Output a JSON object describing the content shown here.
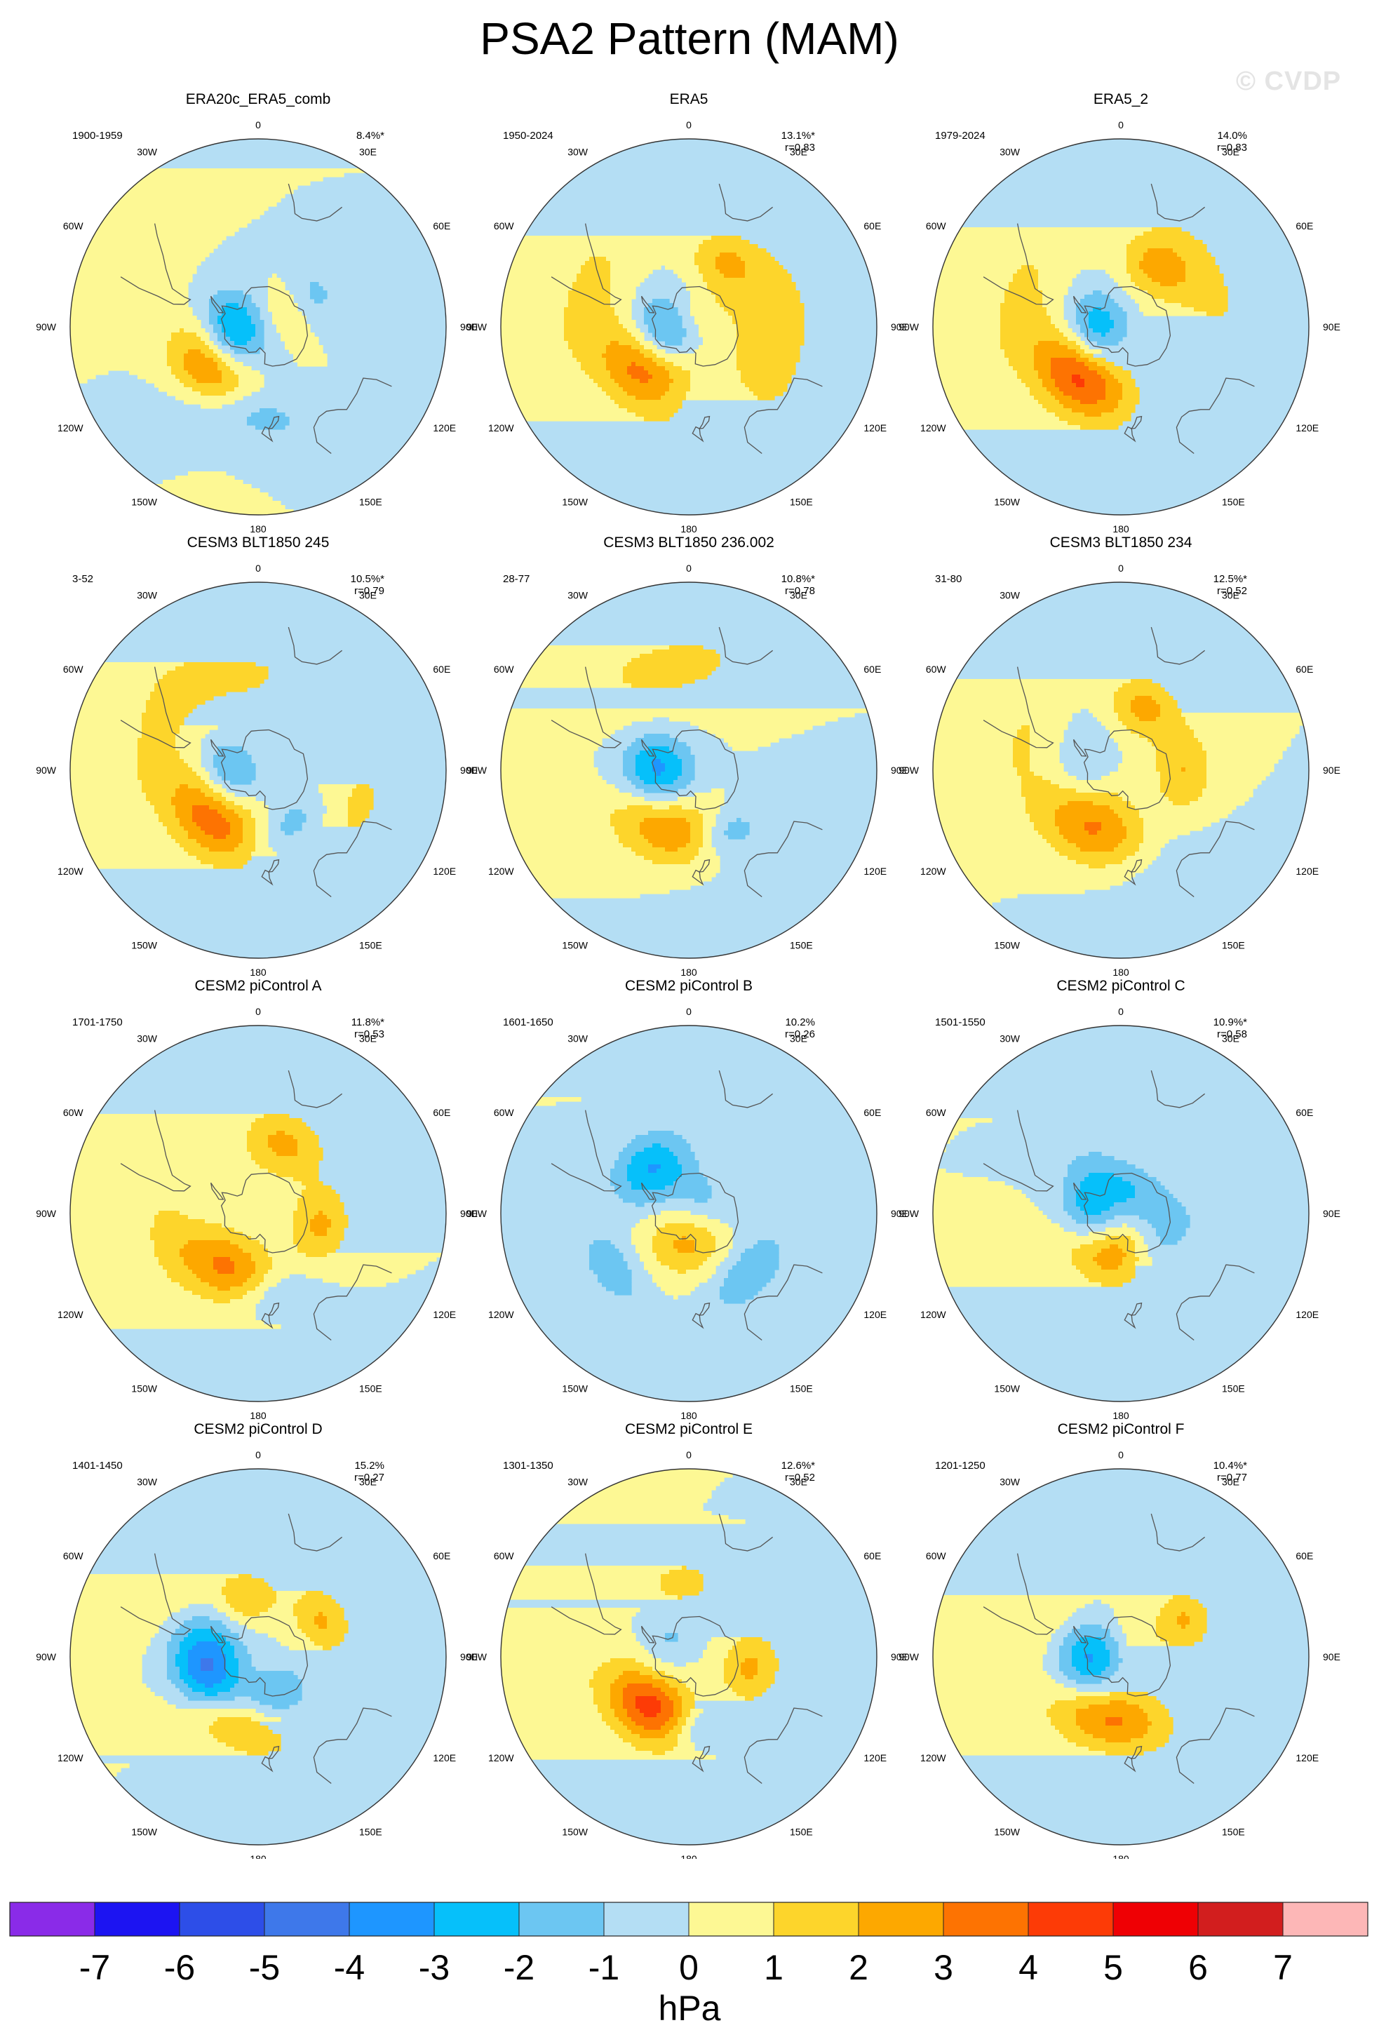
{
  "title": "PSA2 Pattern (MAM)",
  "watermark": "© CVDP",
  "longitude_labels": [
    "0",
    "30E",
    "60E",
    "90E",
    "120E",
    "150E",
    "180",
    "150W",
    "120W",
    "90W",
    "60W",
    "30W"
  ],
  "panels": [
    {
      "name": "ERA20c_ERA5_comb",
      "years": "1900-1959",
      "pct": "8.4%*",
      "r": "",
      "features": [
        {
          "lat": -78,
          "lon": -100,
          "amp": -3.6,
          "rx": 13,
          "ry": 11
        },
        {
          "lat": -60,
          "lon": -130,
          "amp": 3.4,
          "rx": 16,
          "ry": 12
        },
        {
          "lat": -48,
          "lon": -170,
          "amp": -1.6,
          "rx": 24,
          "ry": 9
        },
        {
          "lat": -58,
          "lon": 60,
          "amp": -1.2,
          "rx": 10,
          "ry": 7
        },
        {
          "lat": -30,
          "lon": -60,
          "amp": 0.6,
          "rx": 22,
          "ry": 10
        },
        {
          "lat": -78,
          "lon": 60,
          "amp": 0.8,
          "rx": 10,
          "ry": 8
        }
      ]
    },
    {
      "name": "ERA5",
      "years": "1950-2024",
      "pct": "13.1%*",
      "r": "r=0.83",
      "features": [
        {
          "lat": -78,
          "lon": -100,
          "amp": -3.3,
          "rx": 13,
          "ry": 11
        },
        {
          "lat": -60,
          "lon": -140,
          "amp": 4.2,
          "rx": 18,
          "ry": 13
        },
        {
          "lat": -55,
          "lon": 30,
          "amp": 2.0,
          "rx": 12,
          "ry": 10
        },
        {
          "lat": -50,
          "lon": 100,
          "amp": 1.4,
          "rx": 38,
          "ry": 18
        },
        {
          "lat": -40,
          "lon": -70,
          "amp": 1.2,
          "rx": 30,
          "ry": 14
        },
        {
          "lat": -55,
          "lon": -170,
          "amp": -1.2,
          "rx": 18,
          "ry": 9
        },
        {
          "lat": -85,
          "lon": 0,
          "amp": 1.0,
          "rx": 12,
          "ry": 8
        }
      ]
    },
    {
      "name": "ERA5_2",
      "years": "1979-2024",
      "pct": "14.0%",
      "r": "r=0.83",
      "features": [
        {
          "lat": -78,
          "lon": -100,
          "amp": -3.3,
          "rx": 13,
          "ry": 11
        },
        {
          "lat": -60,
          "lon": -140,
          "amp": 4.6,
          "rx": 18,
          "ry": 13
        },
        {
          "lat": -57,
          "lon": 30,
          "amp": 2.1,
          "rx": 12,
          "ry": 10
        },
        {
          "lat": -45,
          "lon": 60,
          "amp": 1.2,
          "rx": 30,
          "ry": 14
        },
        {
          "lat": -40,
          "lon": -70,
          "amp": 1.1,
          "rx": 30,
          "ry": 14
        }
      ]
    },
    {
      "name": "CESM3 BLT1850 245",
      "years": "3-52",
      "pct": "10.5%*",
      "r": "r=0.79",
      "features": [
        {
          "lat": -75,
          "lon": -105,
          "amp": -2.9,
          "rx": 13,
          "ry": 11
        },
        {
          "lat": -60,
          "lon": -135,
          "amp": 4.2,
          "rx": 18,
          "ry": 13
        },
        {
          "lat": -60,
          "lon": 150,
          "amp": -1.5,
          "rx": 14,
          "ry": 8
        },
        {
          "lat": -45,
          "lon": -10,
          "amp": 1.1,
          "rx": 30,
          "ry": 14
        },
        {
          "lat": -40,
          "lon": 110,
          "amp": 1.2,
          "rx": 20,
          "ry": 12
        },
        {
          "lat": -38,
          "lon": -70,
          "amp": 1.0,
          "rx": 28,
          "ry": 12
        }
      ]
    },
    {
      "name": "CESM3 BLT1850 236.002",
      "years": "28-77",
      "pct": "10.8%*",
      "r": "r=0.78",
      "features": [
        {
          "lat": -75,
          "lon": -90,
          "amp": -3.4,
          "rx": 12,
          "ry": 12
        },
        {
          "lat": -60,
          "lon": -160,
          "amp": 2.9,
          "rx": 20,
          "ry": 12
        },
        {
          "lat": -55,
          "lon": 150,
          "amp": -1.6,
          "rx": 10,
          "ry": 7
        },
        {
          "lat": -40,
          "lon": -10,
          "amp": 1.2,
          "rx": 40,
          "ry": 16
        },
        {
          "lat": -40,
          "lon": 140,
          "amp": -0.7,
          "rx": 30,
          "ry": 14
        }
      ]
    },
    {
      "name": "CESM3 BLT1850 234",
      "years": "31-80",
      "pct": "12.5%*",
      "r": "r=0.52",
      "features": [
        {
          "lat": -60,
          "lon": -150,
          "amp": 3.2,
          "rx": 20,
          "ry": 13
        },
        {
          "lat": -58,
          "lon": 20,
          "amp": 2.3,
          "rx": 12,
          "ry": 10
        },
        {
          "lat": -60,
          "lon": 90,
          "amp": 2.0,
          "rx": 14,
          "ry": 10
        },
        {
          "lat": -72,
          "lon": -80,
          "amp": -1.3,
          "rx": 14,
          "ry": 9
        },
        {
          "lat": -40,
          "lon": -70,
          "amp": 1.0,
          "rx": 22,
          "ry": 12
        },
        {
          "lat": -40,
          "lon": 160,
          "amp": -0.8,
          "rx": 22,
          "ry": 10
        }
      ]
    },
    {
      "name": "CESM2 piControl A",
      "years": "1701-1750",
      "pct": "11.8%*",
      "r": "r=0.53",
      "features": [
        {
          "lat": -60,
          "lon": -150,
          "amp": 3.2,
          "rx": 18,
          "ry": 12
        },
        {
          "lat": -55,
          "lon": 20,
          "amp": 2.3,
          "rx": 14,
          "ry": 11
        },
        {
          "lat": -60,
          "lon": 100,
          "amp": 2.2,
          "rx": 13,
          "ry": 10
        },
        {
          "lat": -50,
          "lon": 170,
          "amp": -1.6,
          "rx": 14,
          "ry": 8
        },
        {
          "lat": -45,
          "lon": -100,
          "amp": 0.9,
          "rx": 20,
          "ry": 10
        }
      ]
    },
    {
      "name": "CESM2 piControl B",
      "years": "1601-1650",
      "pct": "10.2%",
      "r": "r=0.26",
      "features": [
        {
          "lat": -62,
          "lon": -40,
          "amp": -3.0,
          "rx": 14,
          "ry": 11
        },
        {
          "lat": -75,
          "lon": -175,
          "amp": 2.2,
          "rx": 14,
          "ry": 11
        },
        {
          "lat": -50,
          "lon": 135,
          "amp": -1.8,
          "rx": 18,
          "ry": 10
        },
        {
          "lat": -45,
          "lon": -125,
          "amp": -1.6,
          "rx": 16,
          "ry": 9
        },
        {
          "lat": -80,
          "lon": 40,
          "amp": -1.2,
          "rx": 12,
          "ry": 9
        },
        {
          "lat": -30,
          "lon": 30,
          "amp": 0.9,
          "rx": 30,
          "ry": 12
        }
      ]
    },
    {
      "name": "CESM2 piControl C",
      "years": "1501-1550",
      "pct": "10.9%*",
      "r": "r=0.58",
      "features": [
        {
          "lat": -75,
          "lon": -95,
          "amp": -2.8,
          "rx": 14,
          "ry": 10
        },
        {
          "lat": -70,
          "lon": -160,
          "amp": 3.4,
          "rx": 16,
          "ry": 11
        },
        {
          "lat": -78,
          "lon": 30,
          "amp": -1.9,
          "rx": 22,
          "ry": 10
        },
        {
          "lat": -65,
          "lon": 140,
          "amp": -1.4,
          "rx": 14,
          "ry": 8
        },
        {
          "lat": -35,
          "lon": 20,
          "amp": 0.9,
          "rx": 34,
          "ry": 14
        },
        {
          "lat": -40,
          "lon": 130,
          "amp": 0.8,
          "rx": 26,
          "ry": 12
        }
      ]
    },
    {
      "name": "CESM2 piControl D",
      "years": "1401-1450",
      "pct": "15.2%",
      "r": "r=0.27",
      "features": [
        {
          "lat": -65,
          "lon": -100,
          "amp": -4.2,
          "rx": 16,
          "ry": 12
        },
        {
          "lat": -55,
          "lon": -160,
          "amp": 2.3,
          "rx": 20,
          "ry": 9
        },
        {
          "lat": -62,
          "lon": -10,
          "amp": 2.0,
          "rx": 10,
          "ry": 8
        },
        {
          "lat": -55,
          "lon": 60,
          "amp": 2.1,
          "rx": 12,
          "ry": 9
        },
        {
          "lat": -70,
          "lon": 150,
          "amp": -1.7,
          "rx": 12,
          "ry": 9
        },
        {
          "lat": -40,
          "lon": -40,
          "amp": 0.9,
          "rx": 30,
          "ry": 12
        }
      ]
    },
    {
      "name": "CESM2 piControl E",
      "years": "1301-1350",
      "pct": "12.6%*",
      "r": "r=0.52",
      "features": [
        {
          "lat": -60,
          "lon": -140,
          "amp": 4.5,
          "rx": 16,
          "ry": 12
        },
        {
          "lat": -60,
          "lon": 100,
          "amp": 2.2,
          "rx": 12,
          "ry": 10
        },
        {
          "lat": -55,
          "lon": -5,
          "amp": 1.9,
          "rx": 10,
          "ry": 7
        },
        {
          "lat": -55,
          "lon": 170,
          "amp": -1.7,
          "rx": 10,
          "ry": 7
        },
        {
          "lat": -78,
          "lon": -60,
          "amp": -1.2,
          "rx": 14,
          "ry": 9
        },
        {
          "lat": -30,
          "lon": -80,
          "amp": 0.9,
          "rx": 28,
          "ry": 12
        }
      ]
    },
    {
      "name": "CESM2 piControl F",
      "years": "1201-1250",
      "pct": "10.4%*",
      "r": "r=0.77",
      "features": [
        {
          "lat": -75,
          "lon": -95,
          "amp": -3.2,
          "rx": 12,
          "ry": 11
        },
        {
          "lat": -60,
          "lon": -170,
          "amp": 3.2,
          "rx": 20,
          "ry": 11
        },
        {
          "lat": -55,
          "lon": 60,
          "amp": 2.1,
          "rx": 10,
          "ry": 9
        },
        {
          "lat": -45,
          "lon": -60,
          "amp": 0.9,
          "rx": 26,
          "ry": 12
        },
        {
          "lat": -78,
          "lon": 60,
          "amp": 0.8,
          "rx": 14,
          "ry": 8
        }
      ]
    }
  ],
  "colorbar": {
    "unit": "hPa",
    "levels": [
      "-7",
      "-6",
      "-5",
      "-4",
      "-3",
      "-2",
      "-1",
      "0",
      "1",
      "2",
      "3",
      "4",
      "5",
      "6",
      "7"
    ],
    "colors": [
      "#8a2be8",
      "#1c14f2",
      "#2d4ee8",
      "#3e78ea",
      "#1e96ff",
      "#06c0fa",
      "#6cc6f2",
      "#b4def4",
      "#fdf894",
      "#fdd52b",
      "#fda800",
      "#fd7302",
      "#fd3b06",
      "#ef0004",
      "#d21e1e",
      "#fdb7b7"
    ]
  }
}
